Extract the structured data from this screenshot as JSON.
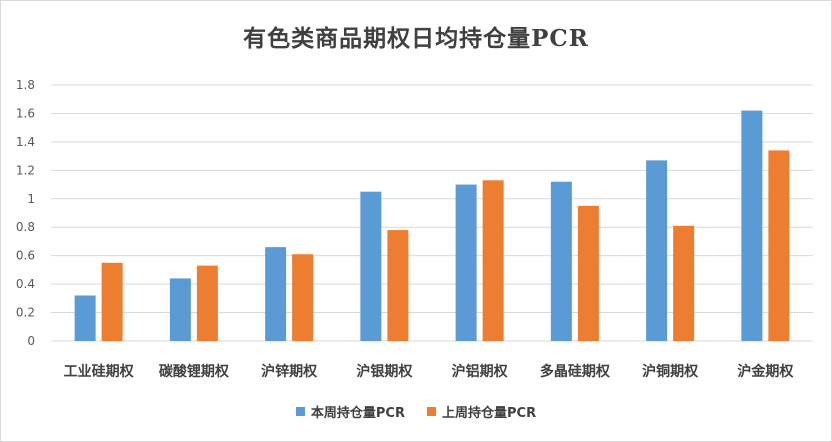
{
  "chart_data": {
    "type": "bar",
    "title": "有色类商品期权日均持仓量PCR",
    "xlabel": "",
    "ylabel": "",
    "ylim": [
      0,
      1.8
    ],
    "yticks": [
      "0",
      "0.2",
      "0.4",
      "0.6",
      "0.8",
      "1",
      "1.2",
      "1.4",
      "1.6",
      "1.8"
    ],
    "grid": true,
    "legend_position": "bottom",
    "categories": [
      "工业硅期权",
      "碳酸锂期权",
      "沪锌期权",
      "沪银期权",
      "沪铝期权",
      "多晶硅期权",
      "沪铜期权",
      "沪金期权"
    ],
    "series": [
      {
        "name": "本周持仓量PCR",
        "color": "#5b9bd5",
        "values": [
          0.32,
          0.44,
          0.66,
          1.05,
          1.1,
          1.12,
          1.27,
          1.62
        ]
      },
      {
        "name": "上周持仓量PCR",
        "color": "#ed7d31",
        "values": [
          0.55,
          0.53,
          0.61,
          0.78,
          1.13,
          0.95,
          0.81,
          1.34
        ]
      }
    ]
  }
}
